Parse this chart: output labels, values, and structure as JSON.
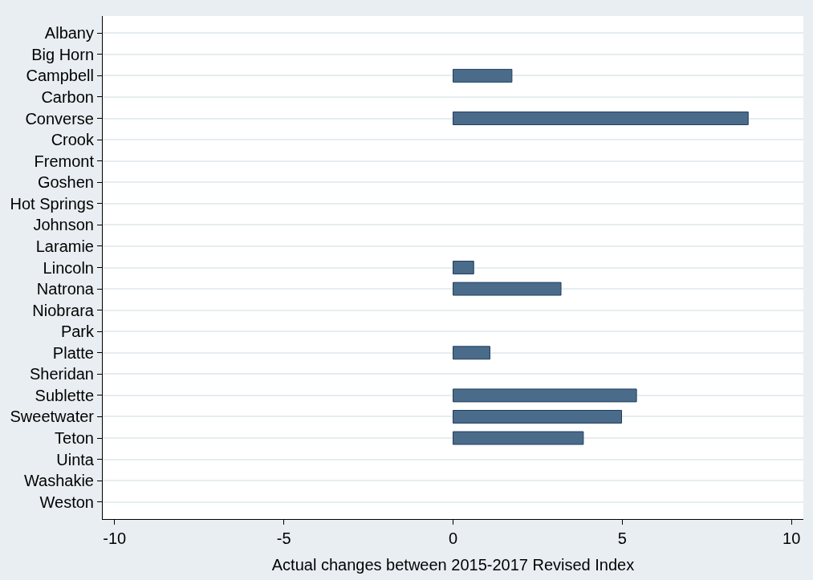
{
  "chart_data": {
    "type": "bar",
    "orientation": "horizontal",
    "xlabel": "Actual changes between 2015-2017 Revised Index",
    "categories": [
      "Albany",
      "Big Horn",
      "Campbell",
      "Carbon",
      "Converse",
      "Crook",
      "Fremont",
      "Goshen",
      "Hot Springs",
      "Johnson",
      "Laramie",
      "Lincoln",
      "Natrona",
      "Niobrara",
      "Park",
      "Platte",
      "Sheridan",
      "Sublette",
      "Sweetwater",
      "Teton",
      "Uinta",
      "Washakie",
      "Weston"
    ],
    "values": [
      null,
      null,
      1.74,
      null,
      8.72,
      null,
      null,
      null,
      null,
      null,
      null,
      0.61,
      3.19,
      null,
      null,
      1.09,
      null,
      5.42,
      4.98,
      3.85,
      null,
      null,
      null
    ],
    "color": "#4a6b8a",
    "xlim": [
      -10.35,
      10.35
    ],
    "xticks": [
      -10,
      -5,
      0,
      5,
      10
    ],
    "grid": "y"
  }
}
